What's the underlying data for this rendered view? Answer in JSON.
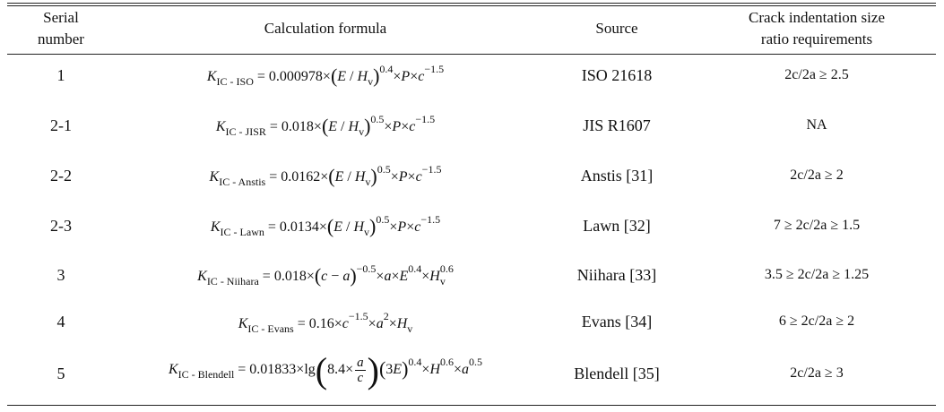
{
  "headers": {
    "serial": "Serial number",
    "formula": "Calculation formula",
    "source": "Source",
    "requirement": "Crack indentation size ratio requirements"
  },
  "rows": [
    {
      "serial": "1",
      "formula_text": "K IC - ISO = 0.000978×(E / Hv)^0.4 ×P×c^−1.5",
      "source": "ISO 21618",
      "requirement": "2c/2a ≥ 2.5"
    },
    {
      "serial": "2-1",
      "formula_text": "K IC - JISR = 0.018×(E / Hv)^0.5 ×P×c^−1.5",
      "source": "JIS R1607",
      "requirement": "NA"
    },
    {
      "serial": "2-2",
      "formula_text": "K IC - Anstis = 0.0162×(E / Hv)^0.5 ×P×c^−1.5",
      "source": "Anstis [31]",
      "requirement": "2c/2a ≥ 2"
    },
    {
      "serial": "2-3",
      "formula_text": "K IC - Lawn = 0.0134×(E / Hv)^0.5 ×P×c^−1.5",
      "source": "Lawn [32]",
      "requirement": "7 ≥ 2c/2a ≥ 1.5"
    },
    {
      "serial": "3",
      "formula_text": "K IC - Niihara = 0.018×(c − a)^−0.5 ×a×E^0.4 ×Hv^0.6",
      "source": "Niihara [33]",
      "requirement": "3.5 ≥ 2c/2a ≥ 1.25"
    },
    {
      "serial": "4",
      "formula_text": "K IC - Evans = 0.16×c^−1.5 ×a^2 ×Hv",
      "source": "Evans [34]",
      "requirement": "6 ≥ 2c/2a ≥ 2"
    },
    {
      "serial": "5",
      "formula_text": "K IC - Blendell = 0.01833×lg(8.4×a/c)(3E)^0.4 ×H^0.6 ×a^0.5",
      "source": "Blendell [35]",
      "requirement": "2c/2a ≥ 3"
    }
  ]
}
